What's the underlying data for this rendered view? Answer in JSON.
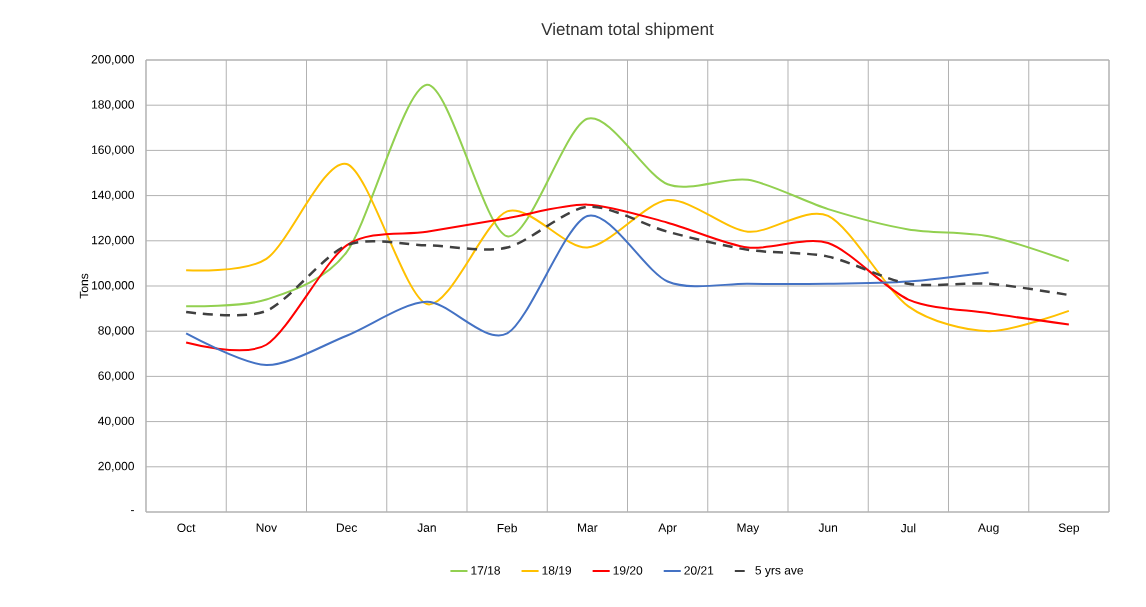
{
  "chart_data": {
    "type": "line",
    "title": "Vietnam total shipment",
    "ylabel": "Tons",
    "categories": [
      "Oct",
      "Nov",
      "Dec",
      "Jan",
      "Feb",
      "Mar",
      "Apr",
      "May",
      "Jun",
      "Jul",
      "Aug",
      "Sep"
    ],
    "series": [
      {
        "name": "17/18",
        "color": "#92d050",
        "values": [
          91000,
          94000,
          115000,
          189000,
          122000,
          174000,
          145000,
          147000,
          134000,
          125000,
          122000,
          111000
        ]
      },
      {
        "name": "18/19",
        "color": "#ffc000",
        "values": [
          107000,
          112000,
          154000,
          92000,
          133000,
          117000,
          138000,
          124000,
          131000,
          91000,
          80000,
          89000
        ]
      },
      {
        "name": "19/20",
        "color": "#ff0000",
        "values": [
          75000,
          74000,
          118000,
          124000,
          130000,
          136000,
          128000,
          117000,
          119000,
          94000,
          88000,
          83000
        ]
      },
      {
        "name": "20/21",
        "color": "#4472c4",
        "values": [
          79000,
          65000,
          78000,
          93000,
          79000,
          131000,
          102000,
          101000,
          101000,
          102000,
          106000,
          null
        ]
      },
      {
        "name": "5 yrs ave",
        "color": "#404040",
        "line_style": "dashed",
        "values": [
          88500,
          89000,
          118000,
          118000,
          117000,
          135000,
          124000,
          116000,
          113000,
          101000,
          101000,
          96000
        ]
      }
    ],
    "ylim": [
      0,
      200000
    ],
    "yticks": [
      {
        "value": 0,
        "label": "-"
      },
      {
        "value": 20000,
        "label": "20,000"
      },
      {
        "value": 40000,
        "label": "40,000"
      },
      {
        "value": 60000,
        "label": "60,000"
      },
      {
        "value": 80000,
        "label": "80,000"
      },
      {
        "value": 100000,
        "label": "100,000"
      },
      {
        "value": 120000,
        "label": "120,000"
      },
      {
        "value": 140000,
        "label": "140,000"
      },
      {
        "value": 160000,
        "label": "160,000"
      },
      {
        "value": 180000,
        "label": "180,000"
      },
      {
        "value": 200000,
        "label": "200,000"
      }
    ],
    "grid": true,
    "legend": "bottom",
    "marker": "none"
  }
}
